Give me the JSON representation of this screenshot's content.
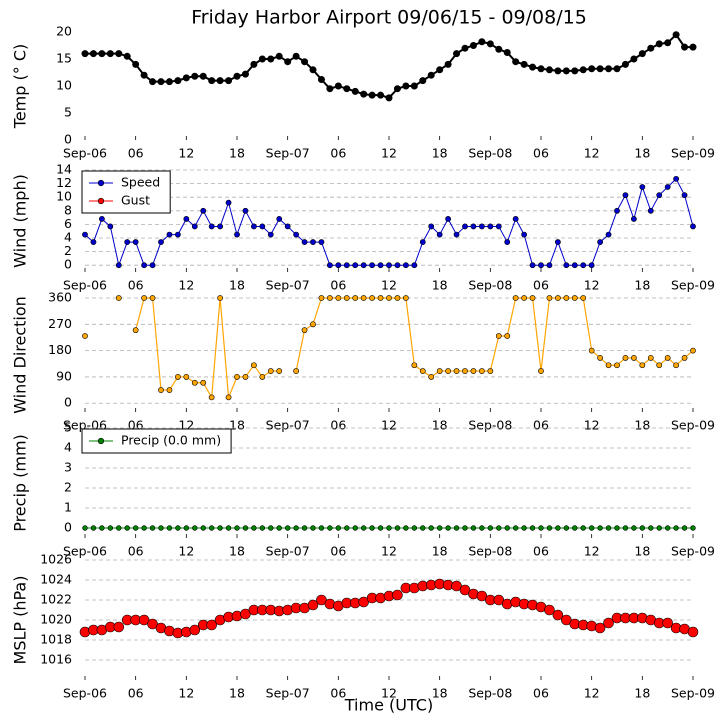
{
  "chart_data": [
    {
      "type": "line",
      "title": "Friday Harbor Airport 09/06/15 - 09/08/15",
      "ylabel": "Temp (° C)",
      "color": "#000000",
      "grid": false,
      "x": [
        0,
        1,
        2,
        3,
        4,
        5,
        6,
        7,
        8,
        9,
        10,
        11,
        12,
        13,
        14,
        15,
        16,
        17,
        18,
        19,
        20,
        21,
        22,
        23,
        24,
        25,
        26,
        27,
        28,
        29,
        30,
        31,
        32,
        33,
        34,
        35,
        36,
        37,
        38,
        39,
        40,
        41,
        42,
        43,
        44,
        45,
        46,
        47,
        48,
        49,
        50,
        51,
        52,
        53,
        54,
        55,
        56,
        57,
        58,
        59,
        60,
        61,
        62,
        63,
        64,
        65,
        66,
        67,
        68,
        69,
        70,
        71,
        72
      ],
      "values": [
        16,
        16,
        16,
        16,
        16,
        15.5,
        14,
        12,
        10.8,
        10.8,
        10.8,
        11,
        11.5,
        11.8,
        11.8,
        11,
        11,
        11,
        11.8,
        12.2,
        14,
        15,
        15,
        15.5,
        14.5,
        15.5,
        14.5,
        13,
        11.2,
        9.5,
        10,
        9.5,
        9,
        8.5,
        8.3,
        8.3,
        7.8,
        9.5,
        10,
        10,
        11,
        12,
        13,
        14,
        16,
        17,
        17.5,
        18.2,
        17.8,
        16.8,
        16.2,
        14.5,
        14,
        13.5,
        13.2,
        13,
        12.8,
        12.8,
        12.8,
        13,
        13.2,
        13.2,
        13.2,
        13.2,
        14,
        15,
        16,
        17,
        17.8,
        18,
        19.5,
        17.2,
        17.2
      ],
      "xlim": [
        0,
        72
      ],
      "xticks": [
        {
          "value": 0,
          "label": "Sep-06"
        },
        {
          "value": 6,
          "label": "06"
        },
        12,
        18,
        {
          "value": 24,
          "label": "Sep-07"
        },
        {
          "value": 30,
          "label": "06"
        },
        {
          "value": 36,
          "label": "12"
        },
        {
          "value": 42,
          "label": "18"
        },
        {
          "value": 48,
          "label": "Sep-08"
        },
        {
          "value": 54,
          "label": "06"
        },
        {
          "value": 60,
          "label": "12"
        },
        {
          "value": 66,
          "label": "18"
        },
        {
          "value": 72,
          "label": "Sep-09"
        }
      ],
      "ylim": [
        0,
        20
      ],
      "yticks": [
        0,
        5,
        10,
        15,
        20
      ]
    },
    {
      "type": "line",
      "ylabel": "Wind (mph)",
      "grid": true,
      "legend": "upper left",
      "x": [
        0,
        1,
        2,
        3,
        4,
        5,
        6,
        7,
        8,
        9,
        10,
        11,
        12,
        13,
        14,
        15,
        16,
        17,
        18,
        19,
        20,
        21,
        22,
        23,
        24,
        25,
        26,
        27,
        28,
        29,
        30,
        31,
        32,
        33,
        34,
        35,
        36,
        37,
        38,
        39,
        40,
        41,
        42,
        43,
        44,
        45,
        46,
        47,
        48,
        49,
        50,
        51,
        52,
        53,
        54,
        55,
        56,
        57,
        58,
        59,
        60,
        61,
        62,
        63,
        64,
        65,
        66,
        67,
        68,
        69,
        70,
        71,
        72
      ],
      "series": [
        {
          "name": "Speed",
          "color": "#0000cc",
          "values": [
            4.5,
            3.4,
            6.8,
            5.7,
            0,
            3.4,
            3.4,
            0,
            0,
            3.4,
            4.5,
            4.5,
            6.8,
            5.7,
            8,
            5.7,
            5.7,
            9.2,
            4.5,
            8,
            5.7,
            5.7,
            4.5,
            6.8,
            5.7,
            4.5,
            3.4,
            3.4,
            3.4,
            0,
            0,
            0,
            0,
            0,
            0,
            0,
            0,
            0,
            0,
            0,
            3.4,
            5.7,
            4.5,
            6.8,
            4.5,
            5.7,
            5.7,
            5.7,
            5.7,
            5.7,
            3.4,
            6.8,
            4.5,
            0,
            0,
            0,
            3.4,
            0,
            0,
            0,
            0,
            3.4,
            4.5,
            8,
            10.3,
            6.8,
            11.5,
            8,
            10.3,
            11.5,
            12.7,
            10.3,
            5.7
          ]
        },
        {
          "name": "Gust",
          "color": "#ff0000",
          "values": [
            null,
            null,
            null,
            null,
            null,
            null,
            null,
            null,
            null,
            null,
            null,
            null,
            null,
            null,
            null,
            null,
            null,
            null,
            null,
            null,
            null,
            null,
            null,
            null,
            null,
            null,
            null,
            null,
            null,
            null,
            null,
            null,
            null,
            null,
            null,
            null,
            null,
            null,
            null,
            null,
            null,
            null,
            null,
            null,
            null,
            null,
            null,
            null,
            null,
            null,
            null,
            null,
            null,
            null,
            null,
            null,
            null,
            null,
            null,
            null,
            null,
            null,
            null,
            null,
            null,
            null,
            null,
            null,
            null,
            null,
            null,
            null,
            null
          ]
        }
      ],
      "xlim": [
        0,
        72
      ],
      "xticks": [
        {
          "value": 0,
          "label": "Sep-06"
        },
        {
          "value": 6,
          "label": "06"
        },
        12,
        18,
        {
          "value": 24,
          "label": "Sep-07"
        },
        {
          "value": 30,
          "label": "06"
        },
        {
          "value": 36,
          "label": "12"
        },
        {
          "value": 42,
          "label": "18"
        },
        {
          "value": 48,
          "label": "Sep-08"
        },
        {
          "value": 54,
          "label": "06"
        },
        {
          "value": 60,
          "label": "12"
        },
        {
          "value": 66,
          "label": "18"
        },
        {
          "value": 72,
          "label": "Sep-09"
        }
      ],
      "ylim": [
        -1,
        14
      ],
      "yticks": [
        0,
        2,
        4,
        6,
        8,
        10,
        12,
        14
      ]
    },
    {
      "type": "line",
      "ylabel": "Wind Direction",
      "color": "#ffa500",
      "grid": true,
      "x": [
        0,
        1,
        2,
        3,
        4,
        5,
        6,
        7,
        8,
        9,
        10,
        11,
        12,
        13,
        14,
        15,
        16,
        17,
        18,
        19,
        20,
        21,
        22,
        23,
        24,
        25,
        26,
        27,
        28,
        29,
        30,
        31,
        32,
        33,
        34,
        35,
        36,
        37,
        38,
        39,
        40,
        41,
        42,
        43,
        44,
        45,
        46,
        47,
        48,
        49,
        50,
        51,
        52,
        53,
        54,
        55,
        56,
        57,
        58,
        59,
        60,
        61,
        62,
        63,
        64,
        65,
        66,
        67,
        68,
        69,
        70,
        71,
        72
      ],
      "values": [
        230,
        null,
        null,
        null,
        360,
        null,
        250,
        360,
        360,
        45,
        45,
        90,
        90,
        70,
        70,
        20,
        360,
        20,
        90,
        90,
        130,
        90,
        110,
        110,
        null,
        110,
        250,
        270,
        360,
        360,
        360,
        360,
        360,
        360,
        360,
        360,
        360,
        360,
        360,
        130,
        110,
        90,
        110,
        110,
        110,
        110,
        110,
        110,
        110,
        230,
        230,
        360,
        360,
        360,
        110,
        360,
        360,
        360,
        360,
        360,
        180,
        155,
        130,
        130,
        155,
        155,
        130,
        155,
        130,
        155,
        130,
        155,
        180
      ],
      "xlim": [
        0,
        72
      ],
      "xticks": [
        {
          "value": 0,
          "label": "Sep-06"
        },
        {
          "value": 6,
          "label": "06"
        },
        12,
        18,
        {
          "value": 24,
          "label": "Sep-07"
        },
        {
          "value": 30,
          "label": "06"
        },
        {
          "value": 36,
          "label": "12"
        },
        {
          "value": 42,
          "label": "18"
        },
        {
          "value": 48,
          "label": "Sep-08"
        },
        {
          "value": 54,
          "label": "06"
        },
        {
          "value": 60,
          "label": "12"
        },
        {
          "value": 66,
          "label": "18"
        },
        {
          "value": 72,
          "label": "Sep-09"
        }
      ],
      "ylim": [
        -30,
        360
      ],
      "yticks": [
        0,
        90,
        180,
        270,
        360
      ]
    },
    {
      "type": "line",
      "ylabel": "Precip (mm)",
      "grid": true,
      "legend": "upper left",
      "x": [
        0,
        1,
        2,
        3,
        4,
        5,
        6,
        7,
        8,
        9,
        10,
        11,
        12,
        13,
        14,
        15,
        16,
        17,
        18,
        19,
        20,
        21,
        22,
        23,
        24,
        25,
        26,
        27,
        28,
        29,
        30,
        31,
        32,
        33,
        34,
        35,
        36,
        37,
        38,
        39,
        40,
        41,
        42,
        43,
        44,
        45,
        46,
        47,
        48,
        49,
        50,
        51,
        52,
        53,
        54,
        55,
        56,
        57,
        58,
        59,
        60,
        61,
        62,
        63,
        64,
        65,
        66,
        67,
        68,
        69,
        70,
        71,
        72
      ],
      "series": [
        {
          "name": "Precip (0.0 mm)",
          "color": "#008000",
          "values": [
            0,
            0,
            0,
            0,
            0,
            0,
            0,
            0,
            0,
            0,
            0,
            0,
            0,
            0,
            0,
            0,
            0,
            0,
            0,
            0,
            0,
            0,
            0,
            0,
            0,
            0,
            0,
            0,
            0,
            0,
            0,
            0,
            0,
            0,
            0,
            0,
            0,
            0,
            0,
            0,
            0,
            0,
            0,
            0,
            0,
            0,
            0,
            0,
            0,
            0,
            0,
            0,
            0,
            0,
            0,
            0,
            0,
            0,
            0,
            0,
            0,
            0,
            0,
            0,
            0,
            0,
            0,
            0,
            0,
            0,
            0,
            0,
            0
          ]
        }
      ],
      "xlim": [
        0,
        72
      ],
      "xticks": [
        {
          "value": 0,
          "label": "Sep-06"
        },
        {
          "value": 6,
          "label": "06"
        },
        12,
        18,
        {
          "value": 24,
          "label": "Sep-07"
        },
        {
          "value": 30,
          "label": "06"
        },
        {
          "value": 36,
          "label": "12"
        },
        {
          "value": 42,
          "label": "18"
        },
        {
          "value": 48,
          "label": "Sep-08"
        },
        {
          "value": 54,
          "label": "06"
        },
        {
          "value": 60,
          "label": "12"
        },
        {
          "value": 66,
          "label": "18"
        },
        {
          "value": 72,
          "label": "Sep-09"
        }
      ],
      "ylim": [
        -0.5,
        5
      ],
      "yticks": [
        0,
        1,
        2,
        3,
        4,
        5
      ]
    },
    {
      "type": "line",
      "ylabel": "MSLP (hPa)",
      "xlabel": "Time (UTC)",
      "color": "#ff0000",
      "grid": true,
      "line": false,
      "x": [
        0,
        1,
        2,
        3,
        4,
        5,
        6,
        7,
        8,
        9,
        10,
        11,
        12,
        13,
        14,
        15,
        16,
        17,
        18,
        19,
        20,
        21,
        22,
        23,
        24,
        25,
        26,
        27,
        28,
        29,
        30,
        31,
        32,
        33,
        34,
        35,
        36,
        37,
        38,
        39,
        40,
        41,
        42,
        43,
        44,
        45,
        46,
        47,
        48,
        49,
        50,
        51,
        52,
        53,
        54,
        55,
        56,
        57,
        58,
        59,
        60,
        61,
        62,
        63,
        64,
        65,
        66,
        67,
        68,
        69,
        70,
        71,
        72
      ],
      "values": [
        1018.8,
        1019,
        1019,
        1019.3,
        1019.3,
        1020,
        1020,
        1020,
        1019.6,
        1019.2,
        1018.9,
        1018.7,
        1018.8,
        1019,
        1019.5,
        1019.5,
        1020,
        1020.3,
        1020.4,
        1020.6,
        1021,
        1021,
        1021,
        1020.9,
        1021,
        1021.2,
        1021.2,
        1021.5,
        1022,
        1021.6,
        1021.4,
        1021.7,
        1021.7,
        1021.8,
        1022.2,
        1022.2,
        1022.4,
        1022.5,
        1023.2,
        1023.2,
        1023.4,
        1023.5,
        1023.6,
        1023.5,
        1023.4,
        1023,
        1022.6,
        1022.4,
        1022,
        1022,
        1021.6,
        1021.8,
        1021.6,
        1021.5,
        1021.3,
        1021,
        1020.5,
        1020,
        1019.6,
        1019.5,
        1019.4,
        1019.2,
        1019.7,
        1020.2,
        1020.2,
        1020.2,
        1020.2,
        1020,
        1019.7,
        1019.7,
        1019.2,
        1019.1,
        1018.8
      ],
      "xlim": [
        0,
        72
      ],
      "xticks": [
        {
          "value": 0,
          "label": "Sep-06"
        },
        {
          "value": 6,
          "label": "06"
        },
        12,
        18,
        {
          "value": 24,
          "label": "Sep-07"
        },
        {
          "value": 30,
          "label": "06"
        },
        {
          "value": 36,
          "label": "12"
        },
        {
          "value": 42,
          "label": "18"
        },
        {
          "value": 48,
          "label": "Sep-08"
        },
        {
          "value": 54,
          "label": "06"
        },
        {
          "value": 60,
          "label": "12"
        },
        {
          "value": 66,
          "label": "18"
        },
        {
          "value": 72,
          "label": "Sep-09"
        }
      ],
      "ylim": [
        1014,
        1026
      ],
      "yticks": [
        1016,
        1018,
        1020,
        1022,
        1024,
        1026
      ]
    }
  ]
}
